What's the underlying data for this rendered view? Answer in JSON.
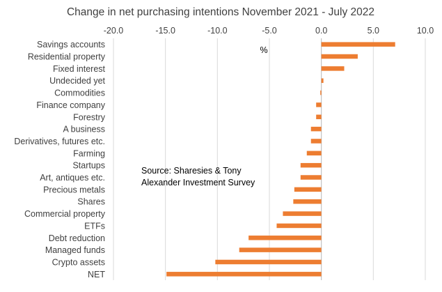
{
  "chart_data": {
    "type": "bar",
    "orientation": "horizontal",
    "title": "Change in net purchasing intentions November 2021 - July 2022",
    "unit_label": "%",
    "source_note": [
      "Source: Sharesies & Tony",
      "Alexander  Investment Survey"
    ],
    "xlim": [
      -20.0,
      10.0
    ],
    "x_ticks": [
      "-20.0",
      "-15.0",
      "-10.0",
      "-5.0",
      "0.0",
      "5.0",
      "10.0"
    ],
    "x_tick_values": [
      -20,
      -15,
      -10,
      -5,
      0,
      5,
      10
    ],
    "x_axis_position": "top",
    "grid": true,
    "bar_color": "#ED7D31",
    "categories": [
      "Savings accounts",
      "Residential property",
      "Fixed interest",
      "Undecided yet",
      "Commodities",
      "Finance company",
      "Forestry",
      "A business",
      "Derivatives, futures etc.",
      "Farming",
      "Startups",
      "Art, antiques etc.",
      "Precious metals",
      "Shares",
      "Commercial property",
      "ETFs",
      "Debt reduction",
      "Managed funds",
      "Crypto assets",
      "NET"
    ],
    "values": [
      7.1,
      3.5,
      2.2,
      0.2,
      -0.1,
      -0.5,
      -0.5,
      -1.0,
      -1.0,
      -1.4,
      -2.0,
      -2.0,
      -2.6,
      -2.7,
      -3.7,
      -4.3,
      -7.0,
      -7.9,
      -10.2,
      -14.9
    ]
  }
}
